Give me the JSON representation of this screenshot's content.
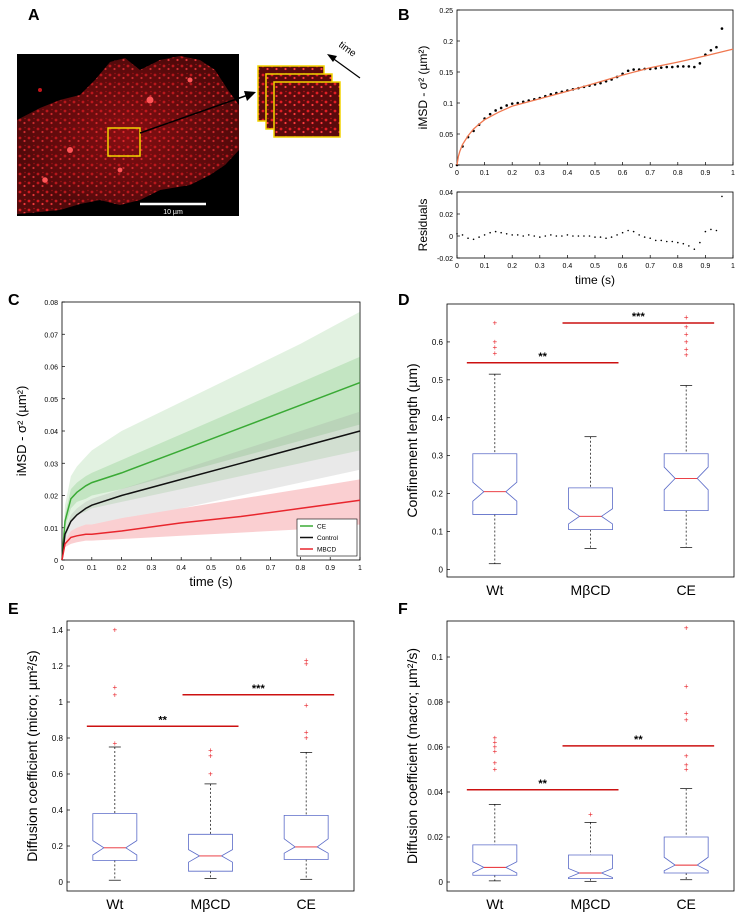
{
  "colors": {
    "red": "#e8262d",
    "green": "#3aaa35",
    "black": "#111111",
    "blue": "#5b6bc8",
    "fit": "#f07850",
    "micro_red": "#cc1111",
    "yellow": "#f2d400"
  },
  "panels": {
    "A": {
      "label": "A",
      "scale_bar_text": "10 µm",
      "arrow_text": "time"
    },
    "B": {
      "label": "B",
      "chart_data": [
        {
          "type": "scatter",
          "xlabel": "",
          "ylabel": "iMSD - σ² (µm²)",
          "xlim": [
            0,
            1
          ],
          "ylim": [
            0,
            0.25
          ],
          "xticks": [
            "0",
            "0.1",
            "0.2",
            "0.3",
            "0.4",
            "0.5",
            "0.6",
            "0.7",
            "0.8",
            "0.9",
            "1"
          ],
          "yticks": [
            "0",
            "0.05",
            "0.1",
            "0.15",
            "0.2",
            "0.25"
          ],
          "series": [
            {
              "points": {
                "x": [
                  0,
                  0.02,
                  0.04,
                  0.06,
                  0.08,
                  0.1,
                  0.12,
                  0.14,
                  0.16,
                  0.18,
                  0.2,
                  0.22,
                  0.24,
                  0.26,
                  0.28,
                  0.3,
                  0.32,
                  0.34,
                  0.36,
                  0.38,
                  0.4,
                  0.42,
                  0.44,
                  0.46,
                  0.48,
                  0.5,
                  0.52,
                  0.54,
                  0.56,
                  0.58,
                  0.6,
                  0.62,
                  0.64,
                  0.66,
                  0.68,
                  0.7,
                  0.72,
                  0.74,
                  0.76,
                  0.78,
                  0.8,
                  0.82,
                  0.84,
                  0.86,
                  0.88,
                  0.9,
                  0.92,
                  0.94,
                  0.96
                ],
                "y": [
                  0.0,
                  0.03,
                  0.045,
                  0.055,
                  0.065,
                  0.075,
                  0.082,
                  0.088,
                  0.092,
                  0.096,
                  0.099,
                  0.1,
                  0.102,
                  0.104,
                  0.106,
                  0.108,
                  0.111,
                  0.114,
                  0.116,
                  0.118,
                  0.12,
                  0.122,
                  0.124,
                  0.126,
                  0.128,
                  0.13,
                  0.132,
                  0.135,
                  0.138,
                  0.142,
                  0.147,
                  0.152,
                  0.154,
                  0.154,
                  0.155,
                  0.155,
                  0.156,
                  0.157,
                  0.158,
                  0.158,
                  0.159,
                  0.159,
                  0.159,
                  0.158,
                  0.164,
                  0.178,
                  0.185,
                  0.19,
                  0.22
                ]
              }
            },
            {
              "fit": {
                "x": [
                  0,
                  0.005,
                  0.01,
                  0.02,
                  0.04,
                  0.06,
                  0.08,
                  0.1,
                  0.15,
                  0.2,
                  0.3,
                  0.4,
                  0.5,
                  0.6,
                  0.7,
                  0.8,
                  0.9,
                  1.0
                ],
                "y": [
                  0,
                  0.014,
                  0.022,
                  0.033,
                  0.047,
                  0.058,
                  0.066,
                  0.073,
                  0.085,
                  0.095,
                  0.107,
                  0.119,
                  0.132,
                  0.145,
                  0.157,
                  0.166,
                  0.176,
                  0.187
                ]
              }
            }
          ]
        },
        {
          "type": "scatter",
          "xlabel": "time (s)",
          "ylabel": "Residuals",
          "xlim": [
            0,
            1
          ],
          "ylim": [
            -0.02,
            0.04
          ],
          "xticks": [
            "0",
            "0.1",
            "0.2",
            "0.3",
            "0.4",
            "0.5",
            "0.6",
            "0.7",
            "0.8",
            "0.9",
            "1"
          ],
          "yticks": [
            "-0.02",
            "0",
            "0.02",
            "0.04"
          ],
          "series": [
            {
              "points": {
                "x": [
                  0,
                  0.02,
                  0.04,
                  0.06,
                  0.08,
                  0.1,
                  0.12,
                  0.14,
                  0.16,
                  0.18,
                  0.2,
                  0.22,
                  0.24,
                  0.26,
                  0.28,
                  0.3,
                  0.32,
                  0.34,
                  0.36,
                  0.38,
                  0.4,
                  0.42,
                  0.44,
                  0.46,
                  0.48,
                  0.5,
                  0.52,
                  0.54,
                  0.56,
                  0.58,
                  0.6,
                  0.62,
                  0.64,
                  0.66,
                  0.68,
                  0.7,
                  0.72,
                  0.74,
                  0.76,
                  0.78,
                  0.8,
                  0.82,
                  0.84,
                  0.86,
                  0.88,
                  0.9,
                  0.92,
                  0.94,
                  0.96
                ],
                "y": [
                  0.002,
                  0.001,
                  -0.002,
                  -0.003,
                  -0.001,
                  0.001,
                  0.003,
                  0.004,
                  0.003,
                  0.002,
                  0.001,
                  0.001,
                  0.0,
                  0.001,
                  0.0,
                  -0.001,
                  0.0,
                  0.001,
                  0.0,
                  0.0,
                  0.001,
                  0.0,
                  0.0,
                  0.0,
                  0.0,
                  -0.001,
                  -0.001,
                  -0.002,
                  -0.001,
                  0.001,
                  0.003,
                  0.005,
                  0.004,
                  0.001,
                  -0.001,
                  -0.002,
                  -0.004,
                  -0.004,
                  -0.005,
                  -0.005,
                  -0.006,
                  -0.007,
                  -0.009,
                  -0.012,
                  -0.006,
                  0.004,
                  0.006,
                  0.005,
                  0.036
                ]
              }
            }
          ]
        }
      ]
    },
    "C": {
      "label": "C",
      "chart_data": {
        "type": "line",
        "xlabel": "time (s)",
        "ylabel": "iMSD - σ² (µm²)",
        "xlim": [
          0,
          1
        ],
        "ylim": [
          0,
          0.08
        ],
        "xticks": [
          "0",
          "0.1",
          "0.2",
          "0.3",
          "0.4",
          "0.5",
          "0.6",
          "0.7",
          "0.8",
          "0.9",
          "1"
        ],
        "yticks": [
          "0",
          "0.01",
          "0.02",
          "0.03",
          "0.04",
          "0.05",
          "0.06",
          "0.07",
          "0.08"
        ],
        "legend": "bottom-right",
        "series": [
          {
            "name": "CE",
            "color": "#3aaa35",
            "x": [
              0,
              0.01,
              0.03,
              0.05,
              0.08,
              0.1,
              0.2,
              0.4,
              0.6,
              0.8,
              1.0
            ],
            "y": [
              0,
              0.012,
              0.019,
              0.021,
              0.023,
              0.024,
              0.027,
              0.034,
              0.041,
              0.048,
              0.055
            ],
            "band_outer": {
              "lo": [
                0,
                0.006,
                0.012,
                0.014,
                0.015,
                0.016,
                0.018,
                0.022,
                0.026,
                0.03,
                0.034
              ],
              "hi": [
                0,
                0.017,
                0.026,
                0.029,
                0.032,
                0.034,
                0.04,
                0.049,
                0.058,
                0.067,
                0.077
              ]
            },
            "band_inner": {
              "lo": [
                0,
                0.01,
                0.016,
                0.018,
                0.019,
                0.02,
                0.022,
                0.027,
                0.032,
                0.037,
                0.042
              ],
              "hi": [
                0,
                0.014,
                0.022,
                0.024,
                0.026,
                0.027,
                0.031,
                0.039,
                0.047,
                0.055,
                0.063
              ]
            }
          },
          {
            "name": "Control",
            "color": "#111111",
            "x": [
              0,
              0.01,
              0.03,
              0.05,
              0.08,
              0.1,
              0.2,
              0.4,
              0.6,
              0.8,
              1.0
            ],
            "y": [
              0,
              0.008,
              0.012,
              0.014,
              0.016,
              0.017,
              0.02,
              0.025,
              0.03,
              0.035,
              0.04
            ],
            "band": {
              "lo": [
                0,
                0.006,
                0.009,
                0.01,
                0.011,
                0.011,
                0.013,
                0.016,
                0.02,
                0.024,
                0.028
              ],
              "hi": [
                0,
                0.009,
                0.014,
                0.016,
                0.018,
                0.019,
                0.022,
                0.028,
                0.034,
                0.04,
                0.046
              ]
            }
          },
          {
            "name": "MBCD",
            "color": "#e8262d",
            "x": [
              0,
              0.01,
              0.03,
              0.05,
              0.08,
              0.1,
              0.2,
              0.4,
              0.6,
              0.8,
              1.0
            ],
            "y": [
              0,
              0.005,
              0.007,
              0.0075,
              0.008,
              0.008,
              0.009,
              0.0115,
              0.0135,
              0.016,
              0.0185
            ],
            "band": {
              "lo": [
                0,
                0.004,
                0.005,
                0.0055,
                0.006,
                0.006,
                0.0065,
                0.0075,
                0.0085,
                0.0095,
                0.011
              ],
              "hi": [
                0,
                0.006,
                0.009,
                0.01,
                0.011,
                0.011,
                0.013,
                0.016,
                0.019,
                0.022,
                0.025
              ]
            }
          }
        ]
      }
    },
    "D": {
      "label": "D",
      "chart_data": {
        "type": "box",
        "ylabel": "Confinement length (µm)",
        "ylim": [
          -0.02,
          0.7
        ],
        "yticks": [
          "0",
          "0.1",
          "0.2",
          "0.3",
          "0.4",
          "0.5",
          "0.6"
        ],
        "categories": [
          "Wt",
          "MβCD",
          "CE"
        ],
        "boxes": [
          {
            "q1": 0.145,
            "median": 0.205,
            "q3": 0.305,
            "whisker_lo": 0.015,
            "whisker_hi": 0.515,
            "notch": [
              0.18,
              0.23
            ],
            "outliers": [
              0.57,
              0.585,
              0.6,
              0.65
            ]
          },
          {
            "q1": 0.105,
            "median": 0.14,
            "q3": 0.215,
            "whisker_lo": 0.055,
            "whisker_hi": 0.35,
            "notch": [
              0.12,
              0.16
            ],
            "outliers": []
          },
          {
            "q1": 0.155,
            "median": 0.24,
            "q3": 0.305,
            "whisker_lo": 0.058,
            "whisker_hi": 0.485,
            "notch": [
              0.21,
              0.27
            ],
            "outliers": [
              0.565,
              0.58,
              0.6,
              0.62,
              0.64,
              0.665
            ]
          }
        ],
        "annotations": [
          {
            "text": "**",
            "from": "Wt",
            "to": "MβCD",
            "y": 0.545
          },
          {
            "text": "***",
            "from": "MβCD",
            "to": "CE",
            "y": 0.65
          }
        ]
      }
    },
    "E": {
      "label": "E",
      "chart_data": {
        "type": "box",
        "ylabel": "Diffusion coefficient (micro; µm²/s)",
        "ylim": [
          -0.05,
          1.45
        ],
        "yticks": [
          "0",
          "0.2",
          "0.4",
          "0.6",
          "0.8",
          "1",
          "1.2",
          "1.4"
        ],
        "categories": [
          "Wt",
          "MβCD",
          "CE"
        ],
        "boxes": [
          {
            "q1": 0.12,
            "median": 0.19,
            "q3": 0.38,
            "whisker_lo": 0.01,
            "whisker_hi": 0.75,
            "notch": [
              0.15,
              0.23
            ],
            "outliers": [
              0.77,
              1.04,
              1.08,
              1.4
            ]
          },
          {
            "q1": 0.06,
            "median": 0.145,
            "q3": 0.265,
            "whisker_lo": 0.02,
            "whisker_hi": 0.545,
            "notch": [
              0.11,
              0.18
            ],
            "outliers": [
              0.6,
              0.7,
              0.73
            ]
          },
          {
            "q1": 0.125,
            "median": 0.195,
            "q3": 0.37,
            "whisker_lo": 0.015,
            "whisker_hi": 0.72,
            "notch": [
              0.16,
              0.24
            ],
            "outliers": [
              0.8,
              0.83,
              0.98,
              1.21,
              1.23
            ]
          }
        ],
        "annotations": [
          {
            "text": "**",
            "from": "Wt",
            "to": "MβCD",
            "y": 0.865
          },
          {
            "text": "***",
            "from": "MβCD",
            "to": "CE",
            "y": 1.04
          }
        ]
      }
    },
    "F": {
      "label": "F",
      "chart_data": {
        "type": "box",
        "ylabel": "Diffusion coefficient (macro; µm²/s)",
        "ylim": [
          -0.004,
          0.116
        ],
        "yticks": [
          "0",
          "0.02",
          "0.04",
          "0.06",
          "0.08",
          "0.1"
        ],
        "categories": [
          "Wt",
          "MβCD",
          "CE"
        ],
        "boxes": [
          {
            "q1": 0.003,
            "median": 0.0065,
            "q3": 0.0165,
            "whisker_lo": 0.0005,
            "whisker_hi": 0.0345,
            "notch": [
              0.004,
              0.009
            ],
            "outliers": [
              0.05,
              0.053,
              0.058,
              0.06,
              0.062,
              0.064
            ]
          },
          {
            "q1": 0.0015,
            "median": 0.004,
            "q3": 0.012,
            "whisker_lo": 0.0003,
            "whisker_hi": 0.0265,
            "notch": [
              0.002,
              0.006
            ],
            "outliers": [
              0.03
            ]
          },
          {
            "q1": 0.004,
            "median": 0.0075,
            "q3": 0.02,
            "whisker_lo": 0.001,
            "whisker_hi": 0.0415,
            "notch": [
              0.005,
              0.011
            ],
            "outliers": [
              0.05,
              0.052,
              0.056,
              0.072,
              0.075,
              0.087,
              0.113
            ]
          }
        ],
        "annotations": [
          {
            "text": "**",
            "from": "Wt",
            "to": "MβCD",
            "y": 0.041
          },
          {
            "text": "**",
            "from": "MβCD",
            "to": "CE",
            "y": 0.0605
          }
        ]
      }
    }
  }
}
